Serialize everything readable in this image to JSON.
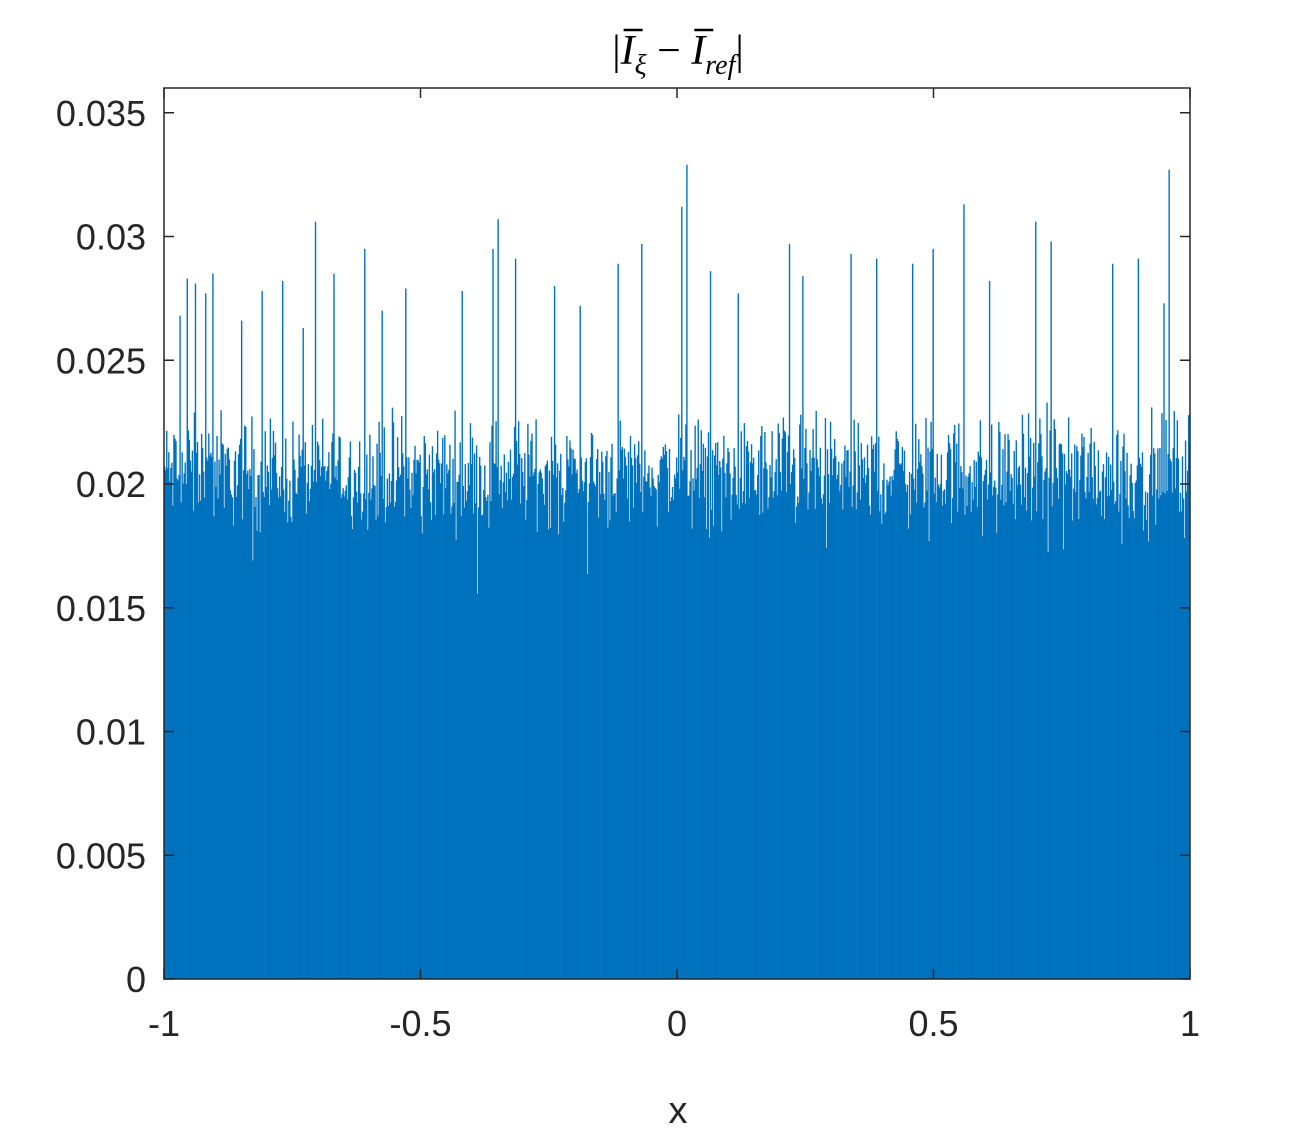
{
  "chart_data": {
    "type": "bar",
    "title": {
      "open_bar": "|",
      "symbol_1": "I",
      "subscript_1": "ξ",
      "operator": " − ",
      "symbol_2": "I",
      "subscript_2": "ref",
      "close_bar": "|"
    },
    "xlabel": "x",
    "ylabel": "",
    "xlim": [
      -1,
      1
    ],
    "ylim": [
      0,
      0.036
    ],
    "xticks": [
      -1,
      -0.5,
      0,
      0.5,
      1
    ],
    "xtick_labels": [
      "-1",
      "-0.5",
      "0",
      "0.5",
      "1"
    ],
    "yticks": [
      0,
      0.005,
      0.01,
      0.015,
      0.02,
      0.025,
      0.03,
      0.035
    ],
    "ytick_labels": [
      "0",
      "0.005",
      "0.01",
      "0.015",
      "0.02",
      "0.025",
      "0.03",
      "0.035"
    ],
    "grid": false,
    "legend": "none",
    "bar_color": "#0072BD",
    "baseline_level": 0.0205,
    "noise_amplitude": 0.0032,
    "sample_count": 1000,
    "peaks": [
      {
        "x": -0.97,
        "y": 0.0268
      },
      {
        "x": -0.955,
        "y": 0.0283
      },
      {
        "x": -0.94,
        "y": 0.0281
      },
      {
        "x": -0.92,
        "y": 0.0277
      },
      {
        "x": -0.905,
        "y": 0.0285
      },
      {
        "x": -0.85,
        "y": 0.0266
      },
      {
        "x": -0.81,
        "y": 0.0278
      },
      {
        "x": -0.77,
        "y": 0.0282
      },
      {
        "x": -0.73,
        "y": 0.0263
      },
      {
        "x": -0.705,
        "y": 0.0306
      },
      {
        "x": -0.67,
        "y": 0.0285
      },
      {
        "x": -0.61,
        "y": 0.0295
      },
      {
        "x": -0.575,
        "y": 0.027
      },
      {
        "x": -0.53,
        "y": 0.0279
      },
      {
        "x": -0.42,
        "y": 0.0278
      },
      {
        "x": -0.36,
        "y": 0.0295
      },
      {
        "x": -0.35,
        "y": 0.0307
      },
      {
        "x": -0.315,
        "y": 0.0291
      },
      {
        "x": -0.24,
        "y": 0.028
      },
      {
        "x": -0.19,
        "y": 0.0272
      },
      {
        "x": -0.115,
        "y": 0.0289
      },
      {
        "x": -0.07,
        "y": 0.0297
      },
      {
        "x": 0.01,
        "y": 0.0312
      },
      {
        "x": 0.02,
        "y": 0.0329
      },
      {
        "x": 0.065,
        "y": 0.0286
      },
      {
        "x": 0.12,
        "y": 0.0277
      },
      {
        "x": 0.22,
        "y": 0.0297
      },
      {
        "x": 0.245,
        "y": 0.0284
      },
      {
        "x": 0.34,
        "y": 0.0293
      },
      {
        "x": 0.39,
        "y": 0.0291
      },
      {
        "x": 0.46,
        "y": 0.0289
      },
      {
        "x": 0.5,
        "y": 0.0295
      },
      {
        "x": 0.56,
        "y": 0.0313
      },
      {
        "x": 0.61,
        "y": 0.0282
      },
      {
        "x": 0.7,
        "y": 0.0306
      },
      {
        "x": 0.73,
        "y": 0.0298
      },
      {
        "x": 0.85,
        "y": 0.0289
      },
      {
        "x": 0.9,
        "y": 0.0291
      },
      {
        "x": 0.95,
        "y": 0.0273
      },
      {
        "x": 0.96,
        "y": 0.0327
      }
    ]
  }
}
